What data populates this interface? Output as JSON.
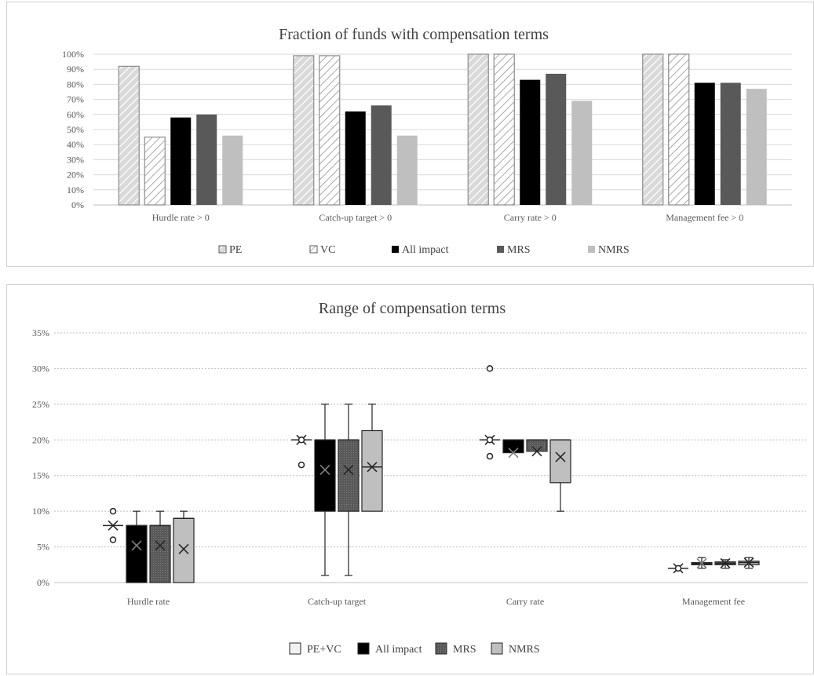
{
  "chart_data": [
    {
      "type": "bar",
      "title": "Fraction of funds with compensation terms",
      "categories": [
        "Hurdle rate > 0",
        "Catch-up target > 0",
        "Carry rate > 0",
        "Management fee > 0"
      ],
      "series": [
        {
          "name": "PE",
          "values": [
            92,
            99,
            100,
            100
          ],
          "color": "#d9d9d9",
          "pattern": "diagonal-hatch"
        },
        {
          "name": "VC",
          "values": [
            45,
            99,
            100,
            100
          ],
          "color": "#ffffff",
          "pattern": "diagonal-hatch"
        },
        {
          "name": "All impact",
          "values": [
            58,
            62,
            83,
            81
          ],
          "color": "#000000"
        },
        {
          "name": "MRS",
          "values": [
            60,
            66,
            87,
            81
          ],
          "color": "#595959"
        },
        {
          "name": "NMRS",
          "values": [
            46,
            46,
            69,
            77
          ],
          "color": "#bfbfbf"
        }
      ],
      "yticks": [
        "0%",
        "10%",
        "20%",
        "30%",
        "40%",
        "50%",
        "60%",
        "70%",
        "80%",
        "90%",
        "100%"
      ],
      "ylim": [
        0,
        100
      ],
      "grid": true,
      "legend": "bottom"
    },
    {
      "type": "box",
      "title": "Range of compensation terms",
      "categories": [
        "Hurdle rate",
        "Catch-up target",
        "Carry rate",
        "Management fee"
      ],
      "series": [
        {
          "name": "PE+VC",
          "color": "#f2f2f2",
          "boxes": [
            {
              "min": 8,
              "q1": 8,
              "median": 8,
              "q3": 8,
              "max": 8,
              "mean": 8,
              "outliers": [
                10,
                6
              ]
            },
            {
              "min": 20,
              "q1": 20,
              "median": 20,
              "q3": 20,
              "max": 20,
              "mean": 20,
              "outliers": [
                20,
                16.5
              ]
            },
            {
              "min": 20,
              "q1": 20,
              "median": 20,
              "q3": 20,
              "max": 20,
              "mean": 20,
              "outliers": [
                30,
                20,
                17.7
              ]
            },
            {
              "min": 2,
              "q1": 2,
              "median": 2,
              "q3": 2,
              "max": 2,
              "mean": 2,
              "outliers": [
                2
              ]
            }
          ]
        },
        {
          "name": "All impact",
          "color": "#000000",
          "boxes": [
            {
              "min": 0,
              "q1": 0,
              "median": 8,
              "q3": 8,
              "max": 10,
              "mean": 5.2,
              "outliers": []
            },
            {
              "min": 1,
              "q1": 10,
              "median": 20,
              "q3": 20,
              "max": 25,
              "mean": 15.8,
              "outliers": []
            },
            {
              "min": 18.2,
              "q1": 18.2,
              "median": 20,
              "q3": 20,
              "max": 20,
              "mean": 18.2,
              "outliers": []
            },
            {
              "min": 2,
              "q1": 2.5,
              "median": 2.7,
              "q3": 2.8,
              "max": 3.5,
              "mean": 2.7,
              "outliers": []
            }
          ]
        },
        {
          "name": "MRS",
          "color": "#595959",
          "boxes": [
            {
              "min": 0,
              "q1": 0,
              "median": 8,
              "q3": 8,
              "max": 10,
              "mean": 5.2,
              "outliers": []
            },
            {
              "min": 1,
              "q1": 10,
              "median": 20,
              "q3": 20,
              "max": 25,
              "mean": 15.8,
              "outliers": []
            },
            {
              "min": 18.4,
              "q1": 18.4,
              "median": 20,
              "q3": 20,
              "max": 20,
              "mean": 18.4,
              "outliers": []
            },
            {
              "min": 2,
              "q1": 2.5,
              "median": 2.7,
              "q3": 2.9,
              "max": 3.2,
              "mean": 2.7,
              "outliers": []
            }
          ]
        },
        {
          "name": "NMRS",
          "color": "#bfbfbf",
          "boxes": [
            {
              "min": 0,
              "q1": 0,
              "median": 9,
              "q3": 9,
              "max": 10,
              "mean": 4.7,
              "outliers": []
            },
            {
              "min": 10,
              "q1": 10,
              "median": 16.2,
              "q3": 21.3,
              "max": 25,
              "mean": 16.2,
              "outliers": []
            },
            {
              "min": 10,
              "q1": 14,
              "median": 20,
              "q3": 20,
              "max": 20,
              "mean": 17.6,
              "outliers": []
            },
            {
              "min": 2,
              "q1": 2.5,
              "median": 2.8,
              "q3": 3,
              "max": 3.5,
              "mean": 2.8,
              "outliers": []
            }
          ]
        }
      ],
      "yticks": [
        "0%",
        "5%",
        "10%",
        "15%",
        "20%",
        "25%",
        "30%",
        "35%"
      ],
      "ylim": [
        0,
        35
      ],
      "grid": true,
      "legend": "bottom"
    }
  ]
}
